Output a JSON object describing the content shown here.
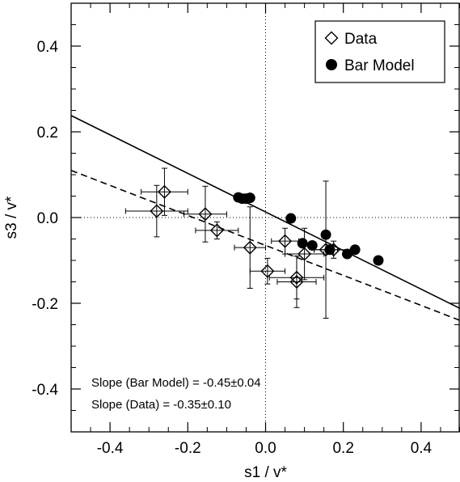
{
  "chart_data": {
    "type": "scatter",
    "xlabel": "s1 / v*",
    "ylabel": "s3 / v*",
    "xlim": [
      -0.5,
      0.5
    ],
    "ylim": [
      -0.5,
      0.5
    ],
    "x_ticks": [
      -0.4,
      -0.2,
      0.0,
      0.2,
      0.4
    ],
    "x_tick_labels": [
      "-0.4",
      "-0.2",
      "0.0",
      "0.2",
      "0.4"
    ],
    "y_ticks": [
      -0.4,
      -0.2,
      0.0,
      0.2,
      0.4
    ],
    "y_tick_labels": [
      "-0.4",
      "-0.2",
      "0.0",
      "0.2",
      "0.4"
    ],
    "grid": false,
    "zero_lines": "dotted",
    "legend_position": "top-right",
    "legend": [
      {
        "label": "Data",
        "marker": "open-diamond"
      },
      {
        "label": "Bar Model",
        "marker": "filled-circle"
      }
    ],
    "series": [
      {
        "name": "Data",
        "marker": "open-diamond",
        "points": [
          {
            "x": -0.28,
            "y": 0.015,
            "xerr": 0.08,
            "yerr": 0.06
          },
          {
            "x": -0.26,
            "y": 0.06,
            "xerr": 0.06,
            "yerr": 0.055
          },
          {
            "x": -0.155,
            "y": 0.008,
            "xerr": 0.055,
            "yerr": 0.065
          },
          {
            "x": -0.125,
            "y": -0.03,
            "xerr": 0.055,
            "yerr": 0.02
          },
          {
            "x": -0.04,
            "y": -0.07,
            "xerr": 0.04,
            "yerr": 0.095
          },
          {
            "x": 0.005,
            "y": -0.125,
            "xerr": 0.045,
            "yerr": 0.03
          },
          {
            "x": 0.05,
            "y": -0.055,
            "xerr": 0.035,
            "yerr": 0.03
          },
          {
            "x": 0.08,
            "y": -0.14,
            "xerr": 0.07,
            "yerr": 0.05
          },
          {
            "x": 0.08,
            "y": -0.15,
            "xerr": 0.05,
            "yerr": 0.06
          },
          {
            "x": 0.1,
            "y": -0.085,
            "xerr": 0.05,
            "yerr": 0.06
          },
          {
            "x": 0.155,
            "y": -0.075,
            "xerr": 0.03,
            "yerr": 0.16
          },
          {
            "x": 0.175,
            "y": -0.075,
            "xerr": 0.05,
            "yerr": 0.02
          }
        ]
      },
      {
        "name": "Bar Model",
        "marker": "filled-circle",
        "points": [
          {
            "x": -0.07,
            "y": 0.047
          },
          {
            "x": -0.06,
            "y": 0.044
          },
          {
            "x": -0.05,
            "y": 0.044
          },
          {
            "x": -0.04,
            "y": 0.046
          },
          {
            "x": 0.065,
            "y": -0.002
          },
          {
            "x": 0.095,
            "y": -0.06
          },
          {
            "x": 0.12,
            "y": -0.065
          },
          {
            "x": 0.155,
            "y": -0.04
          },
          {
            "x": 0.165,
            "y": -0.075
          },
          {
            "x": 0.21,
            "y": -0.085
          },
          {
            "x": 0.23,
            "y": -0.075
          },
          {
            "x": 0.29,
            "y": -0.1
          }
        ]
      }
    ],
    "fit_lines": [
      {
        "series": "Bar Model",
        "style": "solid",
        "slope": -0.45,
        "intercept": 0.013
      },
      {
        "series": "Data",
        "style": "dashed",
        "slope": -0.35,
        "intercept": -0.065
      }
    ],
    "annotations": [
      "Slope (Bar Model) = -0.45±0.04",
      "Slope (Data) = -0.35±0.10"
    ]
  }
}
